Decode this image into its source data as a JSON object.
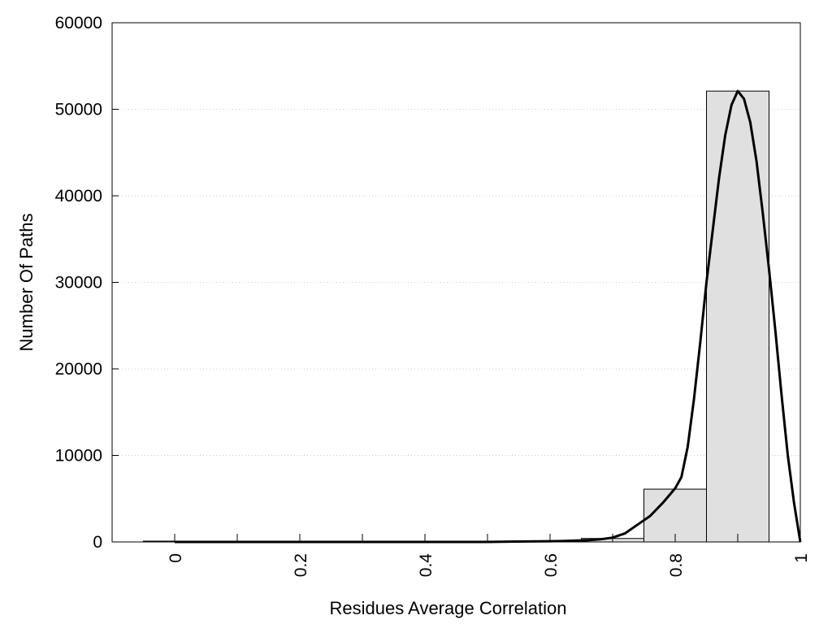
{
  "chart_data": {
    "type": "bar",
    "xlabel": "Residues Average Correlation",
    "ylabel": "Number Of Paths",
    "xlim": [
      -0.1,
      1.0
    ],
    "ylim": [
      0,
      60000
    ],
    "x_ticks": [
      {
        "value": 0,
        "label": "0"
      },
      {
        "value": 0.2,
        "label": "0.2"
      },
      {
        "value": 0.4,
        "label": "0.4"
      },
      {
        "value": 0.6,
        "label": "0.6"
      },
      {
        "value": 0.8,
        "label": "0.8"
      },
      {
        "value": 1.0,
        "label": "1"
      }
    ],
    "x_minor_ticks": [
      0.1,
      0.3,
      0.5,
      0.7,
      0.9
    ],
    "y_ticks": [
      {
        "value": 0,
        "label": "0"
      },
      {
        "value": 10000,
        "label": "10000"
      },
      {
        "value": 20000,
        "label": "20000"
      },
      {
        "value": 30000,
        "label": "30000"
      },
      {
        "value": 40000,
        "label": "40000"
      },
      {
        "value": 50000,
        "label": "50000"
      },
      {
        "value": 60000,
        "label": "60000"
      }
    ],
    "grid": "horizontal-dotted",
    "bins": [
      {
        "x": 0.0,
        "value": 0
      },
      {
        "x": 0.1,
        "value": 0
      },
      {
        "x": 0.2,
        "value": 0
      },
      {
        "x": 0.3,
        "value": 0
      },
      {
        "x": 0.4,
        "value": 0
      },
      {
        "x": 0.5,
        "value": 50
      },
      {
        "x": 0.6,
        "value": 100
      },
      {
        "x": 0.7,
        "value": 400
      },
      {
        "x": 0.8,
        "value": 6100
      },
      {
        "x": 0.9,
        "value": 52100
      }
    ],
    "bin_width": 0.1,
    "bar_color": "#e0e0e0",
    "curve": {
      "color": "#000000",
      "x": [
        0.0,
        0.5,
        0.55,
        0.6,
        0.62,
        0.64,
        0.66,
        0.68,
        0.7,
        0.72,
        0.74,
        0.76,
        0.78,
        0.8,
        0.81,
        0.82,
        0.83,
        0.84,
        0.85,
        0.86,
        0.87,
        0.88,
        0.89,
        0.9,
        0.91,
        0.92,
        0.93,
        0.94,
        0.95,
        0.96,
        0.97,
        0.98,
        0.99,
        1.0
      ],
      "y": [
        0,
        0,
        50,
        80,
        100,
        150,
        200,
        300,
        500,
        1000,
        2000,
        3000,
        4500,
        6200,
        7500,
        11000,
        16500,
        23000,
        30000,
        36000,
        42000,
        47000,
        50500,
        52100,
        51200,
        48500,
        44000,
        38000,
        31500,
        24500,
        17000,
        10000,
        4500,
        0
      ]
    }
  }
}
